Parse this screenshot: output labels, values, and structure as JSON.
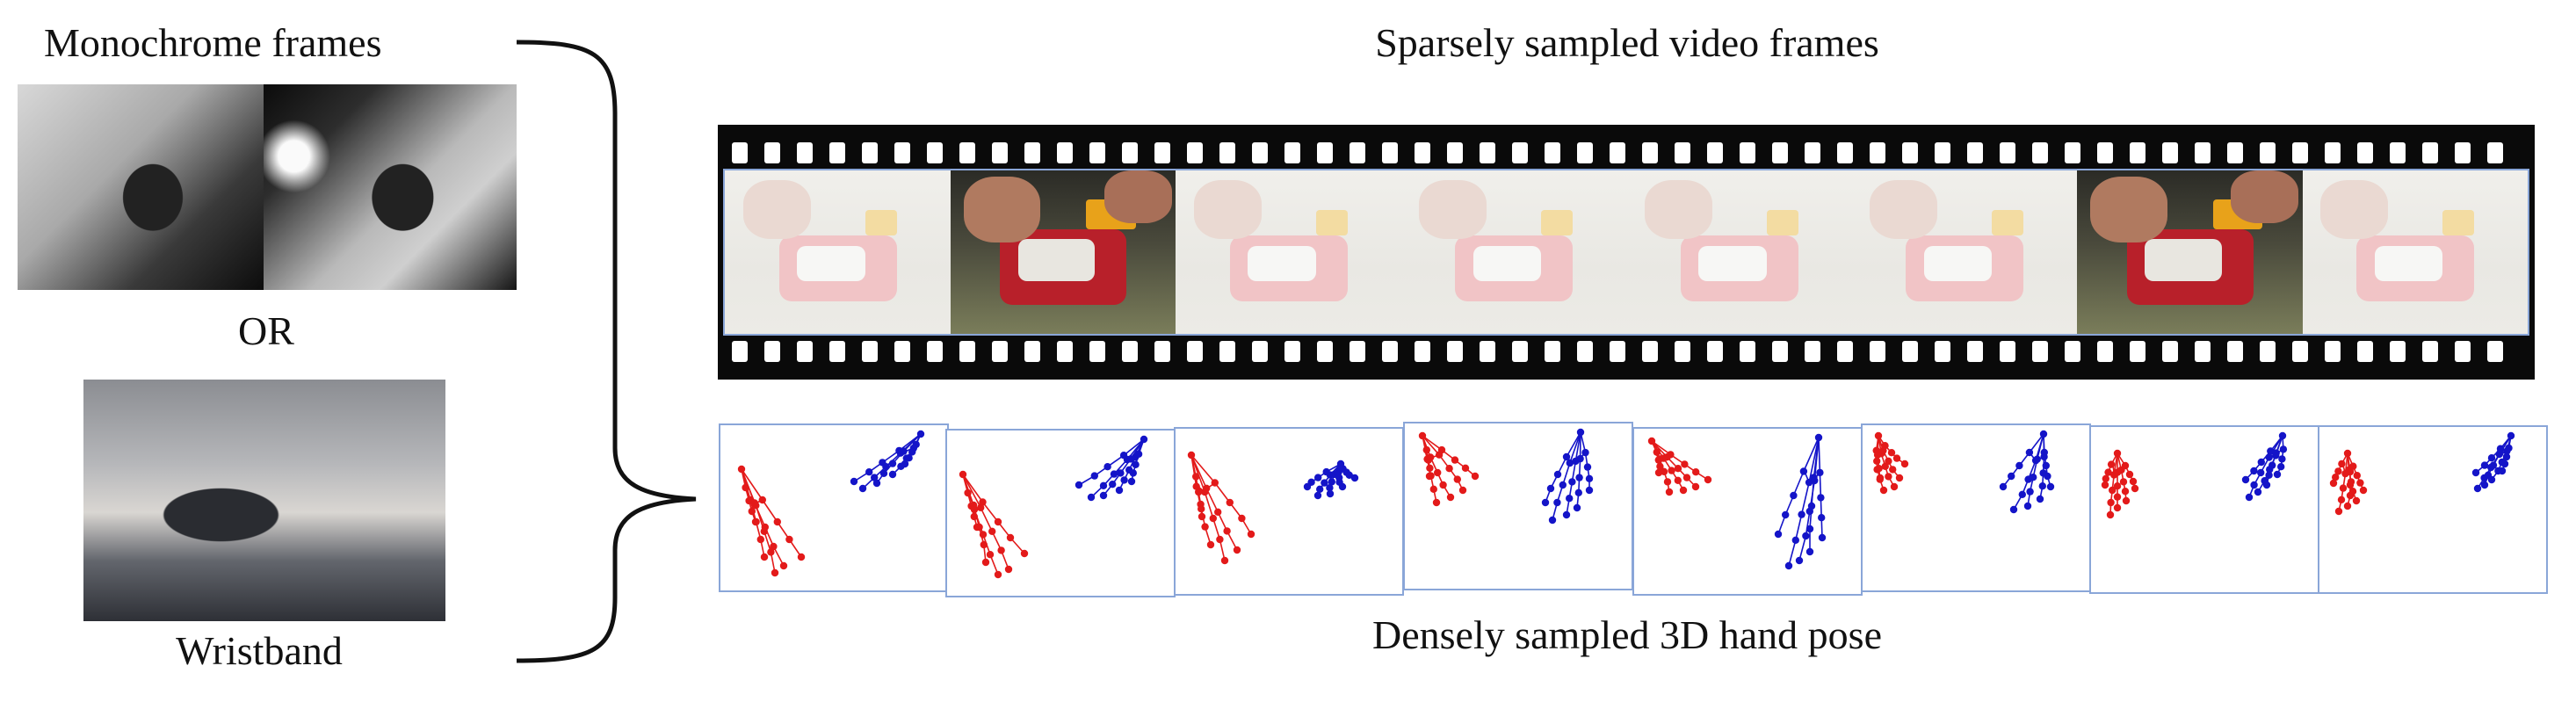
{
  "labels": {
    "monochrome": "Monochrome frames",
    "or": "OR",
    "wristband": "Wristband",
    "sparse_title": "Sparsely sampled video frames",
    "dense_title": "Densely sampled 3D hand pose"
  },
  "colors": {
    "left_hand": "#e31a1a",
    "right_hand": "#1414c8",
    "frame_border": "#8aa6d8",
    "film": "#0a0a0a"
  },
  "video_frames": [
    {
      "highlighted": false
    },
    {
      "highlighted": true
    },
    {
      "highlighted": false
    },
    {
      "highlighted": false
    },
    {
      "highlighted": false
    },
    {
      "highlighted": false
    },
    {
      "highlighted": true
    },
    {
      "highlighted": false
    }
  ],
  "pose_panel_count": 8
}
